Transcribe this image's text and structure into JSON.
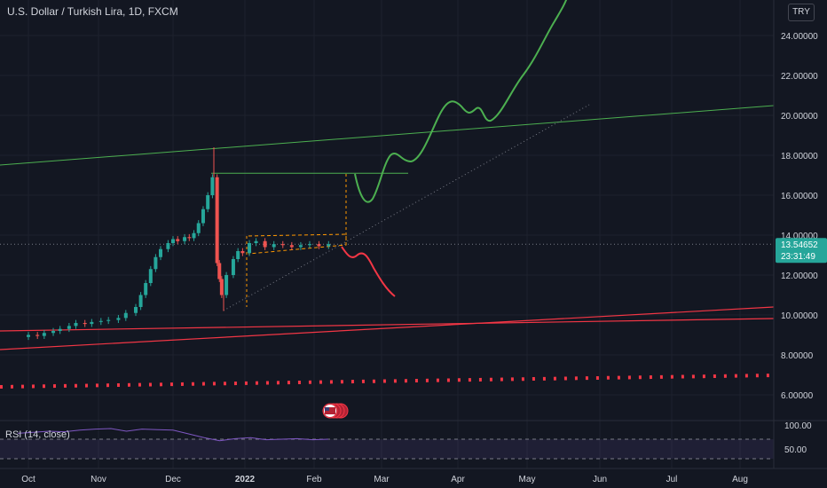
{
  "header": {
    "title": "U.S. Dollar / Turkish Lira, 1D, FXCM",
    "currency": "TRY"
  },
  "price_tag": {
    "price": "13.54652",
    "countdown": "23:31:49"
  },
  "rsi": {
    "label": "RSI (14, close)",
    "levels": [
      "100.00",
      "50.00"
    ]
  },
  "colors": {
    "background": "#131722",
    "up": "#26a69a",
    "down": "#ef5350",
    "bull_path": "#4caf50",
    "bear_path": "#f23645",
    "support_dots": "#f23645",
    "rsi_line": "#7e57c2"
  },
  "chart_data": {
    "type": "candlestick",
    "title": "U.S. Dollar / Turkish Lira, 1D, FXCM",
    "y_ticks": [
      "24.00000",
      "22.00000",
      "20.00000",
      "18.00000",
      "16.00000",
      "14.00000",
      "12.00000",
      "10.00000",
      "8.00000",
      "6.00000"
    ],
    "x_ticks": [
      "Oct",
      "Nov",
      "Dec",
      "2022",
      "Feb",
      "Mar",
      "Apr",
      "May",
      "Jun",
      "Jul",
      "Aug"
    ],
    "ylim": [
      5.5,
      25.5
    ],
    "last_price": 13.54652,
    "candles": [
      [
        "Oct 1",
        8.9,
        9.0
      ],
      [
        "Oct 5",
        9.0,
        8.95
      ],
      [
        "Oct 8",
        8.95,
        9.1
      ],
      [
        "Oct 12",
        9.1,
        9.2
      ],
      [
        "Oct 15",
        9.2,
        9.3
      ],
      [
        "Oct 19",
        9.3,
        9.45
      ],
      [
        "Oct 22",
        9.45,
        9.6
      ],
      [
        "Oct 26",
        9.6,
        9.55
      ],
      [
        "Oct 29",
        9.55,
        9.65
      ],
      [
        "Nov 2",
        9.65,
        9.7
      ],
      [
        "Nov 5",
        9.7,
        9.75
      ],
      [
        "Nov 9",
        9.75,
        9.85
      ],
      [
        "Nov 12",
        9.85,
        10.1
      ],
      [
        "Nov 16",
        10.1,
        10.4
      ],
      [
        "Nov 18",
        10.4,
        11.0
      ],
      [
        "Nov 20",
        11.0,
        11.6
      ],
      [
        "Nov 22",
        11.6,
        12.3
      ],
      [
        "Nov 24",
        12.3,
        12.9
      ],
      [
        "Nov 26",
        12.9,
        13.3
      ],
      [
        "Nov 29",
        13.3,
        13.6
      ],
      [
        "Dec 1",
        13.6,
        13.8
      ],
      [
        "Dec 3",
        13.8,
        13.7
      ],
      [
        "Dec 6",
        13.7,
        13.9
      ],
      [
        "Dec 8",
        13.9,
        13.85
      ],
      [
        "Dec 10",
        13.85,
        14.1
      ],
      [
        "Dec 12",
        14.1,
        14.6
      ],
      [
        "Dec 14",
        14.6,
        15.3
      ],
      [
        "Dec 16",
        15.3,
        16.0
      ],
      [
        "Dec 18",
        16.0,
        16.9
      ],
      [
        "Dec 20",
        16.9,
        12.6
      ],
      [
        "Dec 21",
        12.6,
        11.8
      ],
      [
        "Dec 22",
        11.8,
        11.0
      ],
      [
        "Dec 24",
        11.0,
        12.0
      ],
      [
        "Dec 27",
        12.0,
        12.8
      ],
      [
        "Dec 29",
        12.8,
        13.2
      ],
      [
        "Dec 31",
        13.2,
        13.1
      ],
      [
        "Jan 3",
        13.1,
        13.6
      ],
      [
        "Jan 6",
        13.6,
        13.7
      ],
      [
        "Jan 10",
        13.7,
        13.4
      ],
      [
        "Jan 14",
        13.4,
        13.55
      ],
      [
        "Jan 18",
        13.55,
        13.5
      ],
      [
        "Jan 22",
        13.5,
        13.4
      ],
      [
        "Jan 26",
        13.4,
        13.5
      ],
      [
        "Jan 30",
        13.5,
        13.55
      ],
      [
        "Feb 3",
        13.55,
        13.45
      ],
      [
        "Feb 7",
        13.45,
        13.55
      ]
    ],
    "bull_projection": {
      "y_start": 17.0,
      "y_end": 25.5,
      "x_end": "May"
    },
    "bear_projection": {
      "y_start": 13.3,
      "y_end": 11.0
    },
    "resistance_level": 17.1,
    "trend_lines": [
      "green long-term resistance",
      "red long-term supports",
      "dotted red support near 6.9"
    ],
    "rsi_series": [
      66,
      68,
      70,
      69,
      72,
      74,
      75,
      70,
      74,
      73,
      72,
      65,
      58,
      52,
      56,
      58,
      54,
      55,
      56,
      54,
      55
    ]
  }
}
